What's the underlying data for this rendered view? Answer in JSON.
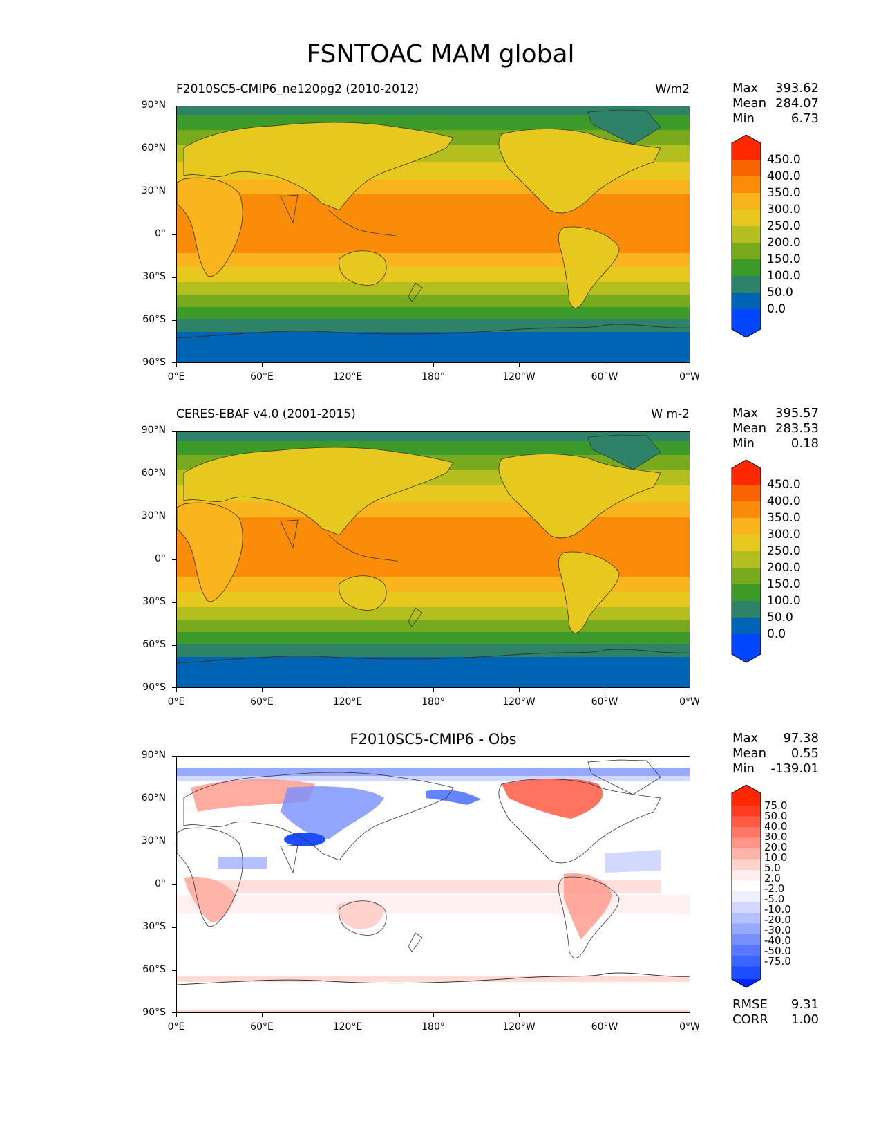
{
  "title": "FSNTOAC MAM global",
  "x_ticks": [
    "0°E",
    "60°E",
    "120°E",
    "180°",
    "120°W",
    "60°W",
    "0°W"
  ],
  "y_ticks": [
    "90°N",
    "60°N",
    "30°N",
    "0°",
    "30°S",
    "60°S",
    "90°S"
  ],
  "stat_labels": {
    "max": "Max",
    "mean": "Mean",
    "min": "Min",
    "rmse": "RMSE",
    "corr": "CORR"
  },
  "panels": [
    {
      "title_left": "F2010SC5-CMIP6_ne120pg2 (2010-2012)",
      "title_right": "W/m2",
      "stats": {
        "max": "393.62",
        "mean": "284.07",
        "min": "6.73"
      },
      "colorbar_labels": [
        "450.0",
        "400.0",
        "350.0",
        "300.0",
        "250.0",
        "200.0",
        "150.0",
        "100.0",
        "50.0",
        "0.0"
      ]
    },
    {
      "title_left": "CERES-EBAF v4.0 (2001-2015)",
      "title_right": "W m-2",
      "stats": {
        "max": "395.57",
        "mean": "283.53",
        "min": "0.18"
      },
      "colorbar_labels": [
        "450.0",
        "400.0",
        "350.0",
        "300.0",
        "250.0",
        "200.0",
        "150.0",
        "100.0",
        "50.0",
        "0.0"
      ]
    },
    {
      "title_center": "F2010SC5-CMIP6 - Obs",
      "stats": {
        "max": "97.38",
        "mean": "0.55",
        "min": "-139.01",
        "rmse": "9.31",
        "corr": "1.00"
      },
      "colorbar_labels": [
        "75.0",
        "50.0",
        "40.0",
        "30.0",
        "20.0",
        "10.0",
        "5.0",
        "2.0",
        "-2.0",
        "-5.0",
        "-10.0",
        "-20.0",
        "-30.0",
        "-40.0",
        "-50.0",
        "-75.0"
      ]
    }
  ],
  "colors": {
    "abs_scale": [
      "#0046ff",
      "#0064b4",
      "#2e8268",
      "#3c9b28",
      "#78aa1e",
      "#b4be1e",
      "#e6c81e",
      "#fab41e",
      "#fa8c0a",
      "#fa6400",
      "#ff2800"
    ],
    "diff_scale": [
      "#0026ff",
      "#1e4cff",
      "#3c64ff",
      "#5a78ff",
      "#7890ff",
      "#96a8ff",
      "#b4c0ff",
      "#d2d8ff",
      "#eef0ff",
      "#ffffff",
      "#ffeeee",
      "#ffd2cc",
      "#ffb4aa",
      "#ff9688",
      "#ff7866",
      "#ff5a44",
      "#ff3c22",
      "#ff2800"
    ]
  }
}
